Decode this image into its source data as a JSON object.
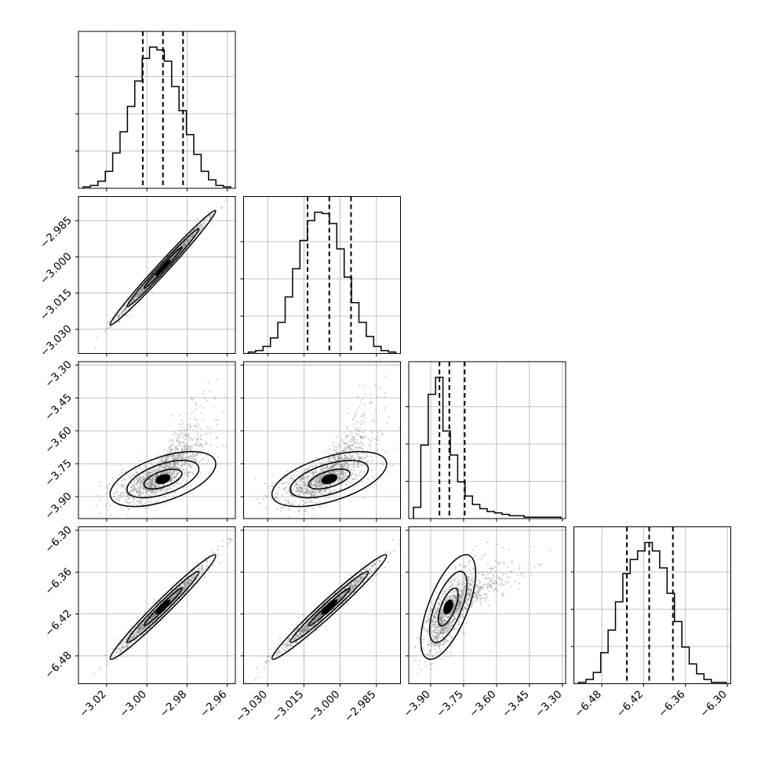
{
  "chart_data": {
    "type": "corner",
    "n_params": 4,
    "grid": true,
    "colors": {
      "line": "#000000",
      "grid": "#b0b0b0",
      "points": "#7f7f7f"
    },
    "params": [
      {
        "range": [
          -3.034,
          -2.956
        ],
        "ticks": [
          -3.02,
          -3.0,
          -2.98,
          -2.96
        ],
        "tick_labels": [
          "−3.02",
          "−3.00",
          "−2.98",
          "−2.96"
        ],
        "mean": -2.992,
        "std": 0.0105,
        "quantiles": [
          -3.002,
          -2.992,
          -2.982
        ]
      },
      {
        "range": [
          -3.04,
          -2.975
        ],
        "ticks": [
          -3.03,
          -3.015,
          -3.0,
          -2.985
        ],
        "tick_labels": [
          "−3.030",
          "−3.015",
          "−3.000",
          "−2.985"
        ],
        "mean": -3.0045,
        "std": 0.0095,
        "quantiles": [
          -3.0135,
          -3.0045,
          -2.9955
        ]
      },
      {
        "range": [
          -4.0,
          -3.285
        ],
        "ticks": [
          -3.9,
          -3.75,
          -3.6,
          -3.45,
          -3.3
        ],
        "tick_labels": [
          "−3.90",
          "−3.75",
          "−3.60",
          "−3.45",
          "−3.30"
        ],
        "mean": -3.82,
        "std": 0.05,
        "quantiles": [
          -3.86,
          -3.815,
          -3.745
        ]
      },
      {
        "range": [
          -6.52,
          -6.295
        ],
        "ticks": [
          -6.48,
          -6.42,
          -6.36,
          -6.3
        ],
        "tick_labels": [
          "−6.48",
          "−6.42",
          "−6.36",
          "−6.30"
        ],
        "mean": -6.41,
        "std": 0.03,
        "quantiles": [
          -6.444,
          -6.412,
          -6.378
        ]
      }
    ],
    "histograms": [
      [
        1,
        2,
        5,
        12,
        25,
        40,
        58,
        76,
        92,
        100,
        98,
        90,
        72,
        55,
        38,
        24,
        12,
        6,
        2,
        1
      ],
      [
        1,
        2,
        5,
        11,
        22,
        40,
        60,
        80,
        94,
        100,
        99,
        92,
        74,
        54,
        36,
        22,
        12,
        5,
        2,
        1
      ],
      [
        8,
        52,
        88,
        100,
        62,
        45,
        26,
        16,
        10,
        7,
        5,
        4,
        3,
        2,
        2,
        1,
        1,
        1,
        1,
        1
      ],
      [
        1,
        3,
        8,
        22,
        38,
        58,
        78,
        88,
        94,
        100,
        94,
        82,
        64,
        44,
        26,
        14,
        7,
        3,
        1,
        1
      ]
    ],
    "correlations": [
      [
        1.0,
        0.99,
        0.55,
        0.98
      ],
      [
        0.99,
        1.0,
        0.55,
        0.98
      ],
      [
        0.55,
        0.55,
        1.0,
        0.65
      ],
      [
        0.98,
        0.98,
        0.65,
        1.0
      ]
    ]
  }
}
